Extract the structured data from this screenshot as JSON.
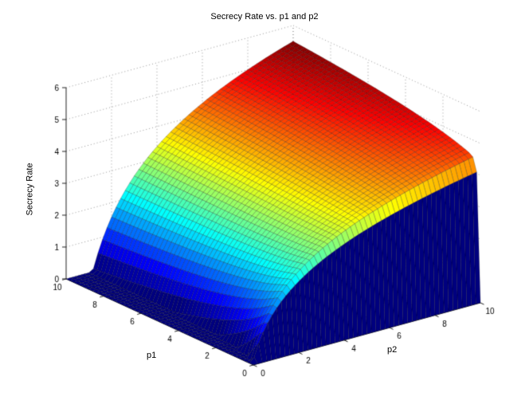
{
  "figure": {
    "title": "Secrecy Rate vs. p1 and p2",
    "background": "#ffffff",
    "axis_color": "#222222",
    "grid_color": "#999999",
    "tick_font_color": "#000000"
  },
  "chart_data": {
    "type": "surface",
    "title": "Secrecy Rate vs. p1 and p2",
    "colormap": "jet",
    "axes": {
      "p1": {
        "label": "p1",
        "range": [
          0,
          10
        ],
        "ticks": [
          0,
          2,
          4,
          6,
          8,
          10
        ]
      },
      "p2": {
        "label": "p2",
        "range": [
          0,
          10
        ],
        "ticks": [
          0,
          2,
          4,
          6,
          8,
          10
        ]
      },
      "z": {
        "label": "Secrecy Rate",
        "range": [
          0,
          6
        ],
        "ticks": [
          0,
          1,
          2,
          3,
          4,
          5,
          6
        ]
      }
    },
    "grid_on": true,
    "grid_style": "dotted",
    "grid_cells": 50,
    "z_formula": "Math.max(0,(Math.log2(1+2*p2)+0.5*Math.log2(1+p1*p2/20)-2.2*Math.log2(1+0.7*p1)/Math.pow(1+p2,1.5))*(1-Math.exp(-12*p1)))",
    "z_max_observed": 5.5,
    "z_samples": {
      "p1": [
        0,
        1,
        2,
        3,
        4,
        5,
        6,
        7,
        8,
        9,
        10
      ],
      "p2": [
        0,
        1,
        2,
        3,
        4,
        5,
        6,
        7,
        8,
        9,
        10
      ],
      "values": [
        [
          0,
          0,
          0,
          0,
          0,
          0,
          0,
          0,
          0,
          0,
          0
        ],
        [
          0,
          1.0,
          2.1,
          2.7,
          3.2,
          3.5,
          3.8,
          4.0,
          4.3,
          4.5,
          4.6
        ],
        [
          0,
          0.7,
          1.9,
          2.6,
          3.2,
          3.6,
          3.9,
          4.2,
          4.4,
          4.6,
          4.8
        ],
        [
          0,
          0.4,
          1.8,
          2.6,
          3.2,
          3.6,
          4.0,
          4.3,
          4.5,
          4.8,
          5.0
        ],
        [
          0,
          0.2,
          1.8,
          2.6,
          3.2,
          3.7,
          4.0,
          4.4,
          4.6,
          4.9,
          5.1
        ],
        [
          0,
          0.1,
          1.7,
          2.6,
          3.2,
          3.7,
          4.1,
          4.4,
          4.7,
          4.9,
          5.2
        ],
        [
          0,
          0,
          1.7,
          2.6,
          3.3,
          3.8,
          4.2,
          4.5,
          4.8,
          5.0,
          5.2
        ],
        [
          0,
          0,
          1.6,
          2.6,
          3.3,
          3.8,
          4.2,
          4.6,
          4.8,
          5.1,
          5.3
        ],
        [
          0,
          0,
          1.6,
          2.6,
          3.3,
          3.8,
          4.3,
          4.6,
          4.9,
          5.2,
          5.4
        ],
        [
          0,
          0,
          1.6,
          2.6,
          3.3,
          3.9,
          4.3,
          4.7,
          5.0,
          5.2,
          5.4
        ],
        [
          0,
          0,
          1.6,
          2.6,
          3.4,
          3.9,
          4.3,
          4.7,
          5.0,
          5.3,
          5.5
        ]
      ]
    }
  }
}
